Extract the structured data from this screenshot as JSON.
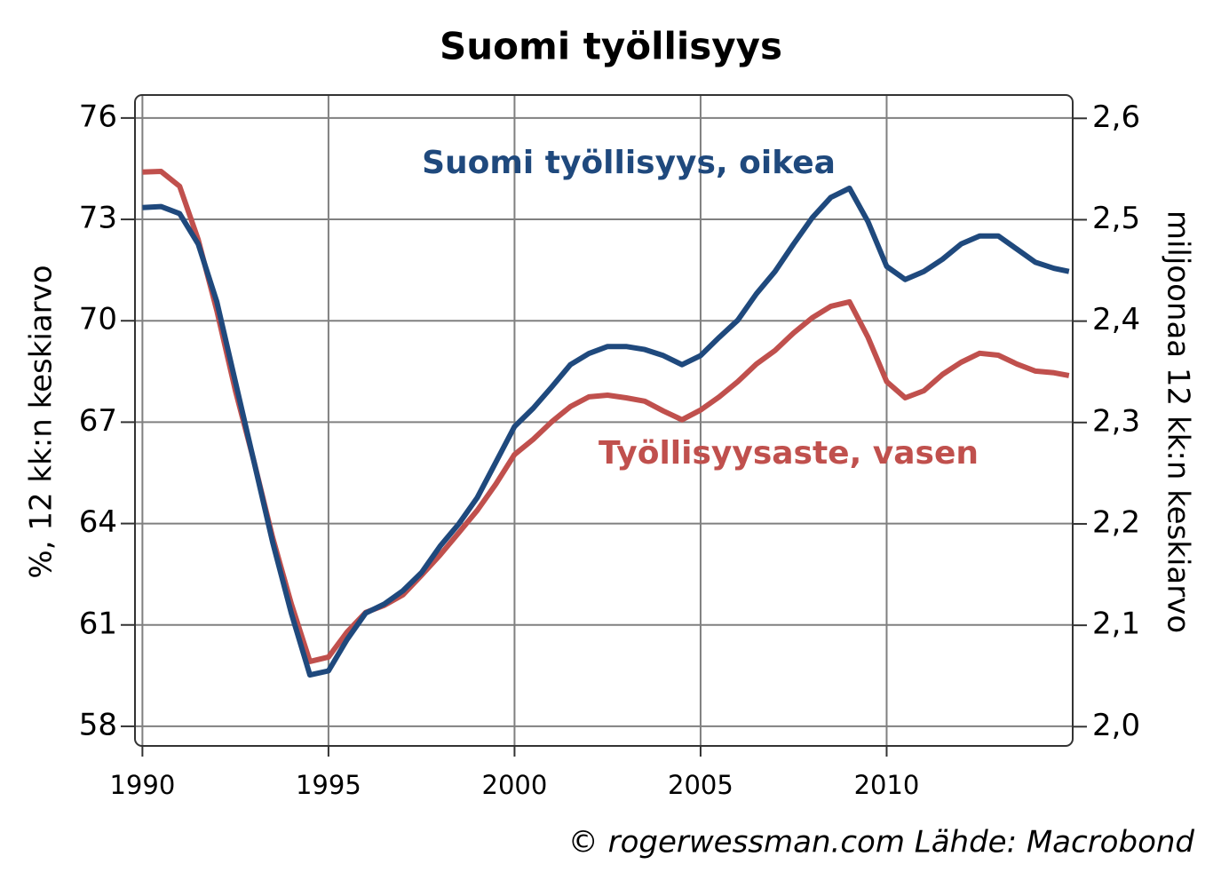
{
  "chart_data": {
    "type": "line",
    "title": "Suomi työllisyys",
    "y_label": "%, 12 kk:n keskiarvo",
    "y2_label": "miljoonaa 12 kk:n keskiarvo",
    "source": "© rogerwessman.com Lähde: Macrobond",
    "grid": true,
    "xlim": [
      1989.8,
      2015.0
    ],
    "xticks": [
      1990,
      1995,
      2000,
      2005,
      2010
    ],
    "ylim": [
      57.42,
      76.68
    ],
    "yticks": [
      58,
      61,
      64,
      67,
      70,
      73,
      76
    ],
    "y2lim": [
      1.981,
      2.623
    ],
    "y2ticks": [
      {
        "value": 2.0,
        "label": "2,0"
      },
      {
        "value": 2.1,
        "label": "2,1"
      },
      {
        "value": 2.2,
        "label": "2,2"
      },
      {
        "value": 2.3,
        "label": "2,3"
      },
      {
        "value": 2.4,
        "label": "2,4"
      },
      {
        "value": 2.5,
        "label": "2,5"
      },
      {
        "value": 2.6,
        "label": "2,6"
      }
    ],
    "x": [
      1990.0,
      1990.5,
      1991.0,
      1991.5,
      1992.0,
      1992.5,
      1993.0,
      1993.5,
      1994.0,
      1994.5,
      1995.0,
      1995.5,
      1996.0,
      1996.5,
      1997.0,
      1997.5,
      1998.0,
      1998.5,
      1999.0,
      1999.5,
      2000.0,
      2000.5,
      2001.0,
      2001.5,
      2002.0,
      2002.5,
      2003.0,
      2003.5,
      2004.0,
      2004.5,
      2005.0,
      2005.5,
      2006.0,
      2006.5,
      2007.0,
      2007.5,
      2008.0,
      2008.5,
      2009.0,
      2009.5,
      2010.0,
      2010.5,
      2011.0,
      2011.5,
      2012.0,
      2012.5,
      2013.0,
      2013.5,
      2014.0,
      2014.5,
      2014.9
    ],
    "series": [
      {
        "name": "Suomi työllisyys, oikea",
        "color": "#1f497d",
        "axis": "y2",
        "values": [
          2.512,
          2.513,
          2.506,
          2.476,
          2.419,
          2.34,
          2.261,
          2.182,
          2.112,
          2.051,
          2.055,
          2.086,
          2.112,
          2.121,
          2.134,
          2.152,
          2.178,
          2.2,
          2.226,
          2.261,
          2.296,
          2.314,
          2.335,
          2.357,
          2.368,
          2.375,
          2.375,
          2.372,
          2.366,
          2.357,
          2.366,
          2.384,
          2.401,
          2.427,
          2.449,
          2.476,
          2.502,
          2.522,
          2.531,
          2.498,
          2.454,
          2.441,
          2.449,
          2.461,
          2.476,
          2.484,
          2.484,
          2.471,
          2.458,
          2.452,
          2.449
        ]
      },
      {
        "name": "Työllisyysaste, vasen",
        "color": "#c0504d",
        "values": [
          74.4,
          74.42,
          73.98,
          72.4,
          70.3,
          67.93,
          65.83,
          63.59,
          61.63,
          59.92,
          60.05,
          60.79,
          61.37,
          61.58,
          61.89,
          62.47,
          63.07,
          63.73,
          64.39,
          65.17,
          66.04,
          66.49,
          67.01,
          67.46,
          67.75,
          67.8,
          67.72,
          67.62,
          67.33,
          67.07,
          67.36,
          67.75,
          68.2,
          68.72,
          69.12,
          69.64,
          70.09,
          70.43,
          70.56,
          69.51,
          68.2,
          67.72,
          67.93,
          68.41,
          68.77,
          69.04,
          68.98,
          68.72,
          68.51,
          68.46,
          68.38
        ]
      }
    ]
  }
}
